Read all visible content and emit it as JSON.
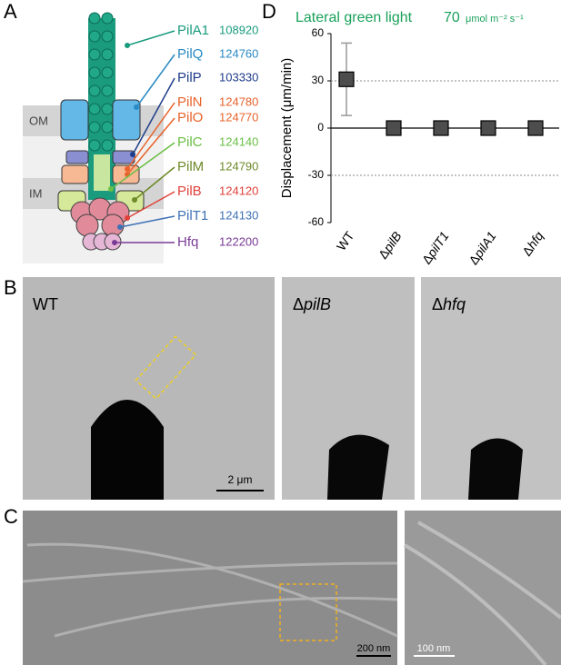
{
  "panel_labels": [
    "A",
    "B",
    "C",
    "D"
  ],
  "panel_a": {
    "membranes": [
      "OM",
      "IM"
    ],
    "proteins": [
      {
        "name": "PilA1",
        "id": "108920",
        "color": "#1a9b7e"
      },
      {
        "name": "PilQ",
        "id": "124760",
        "color": "#2a8ac4"
      },
      {
        "name": "PilP",
        "id": "103330",
        "color": "#1f3c8a"
      },
      {
        "name": "PilN",
        "id": "124780",
        "color": "#e8632b"
      },
      {
        "name": "PilO",
        "id": "124770",
        "color": "#e8632b"
      },
      {
        "name": "PilC",
        "id": "124140",
        "color": "#6abf45"
      },
      {
        "name": "PilM",
        "id": "124790",
        "color": "#6e8a2a"
      },
      {
        "name": "PilB",
        "id": "124120",
        "color": "#e0413a"
      },
      {
        "name": "PilT1",
        "id": "124130",
        "color": "#3f72b5"
      },
      {
        "name": "Hfq",
        "id": "122200",
        "color": "#7a3b96"
      }
    ]
  },
  "panel_b": {
    "labels": [
      "WT",
      "ΔpilB",
      "Δhfq"
    ],
    "scale_bar": "2 μm"
  },
  "panel_c": {
    "scale_bars": [
      "200 nm",
      "100 nm"
    ]
  },
  "chart_data": {
    "type": "point",
    "title": "Lateral green light",
    "intensity": "70",
    "unit": "μmol m⁻² s⁻¹",
    "y_label": "Displacement (μm/min)",
    "categories": [
      "WT",
      "ΔpilB",
      "ΔpilT1",
      "ΔpilA1",
      "Δhfq"
    ],
    "values": [
      31,
      0,
      0,
      0,
      0
    ],
    "errors": [
      23,
      null,
      null,
      null,
      null
    ],
    "color": "#4d4d4d",
    "ylim": [
      -60,
      60
    ],
    "yticks": [
      -60,
      -30,
      0,
      30,
      60
    ],
    "grid": true
  }
}
